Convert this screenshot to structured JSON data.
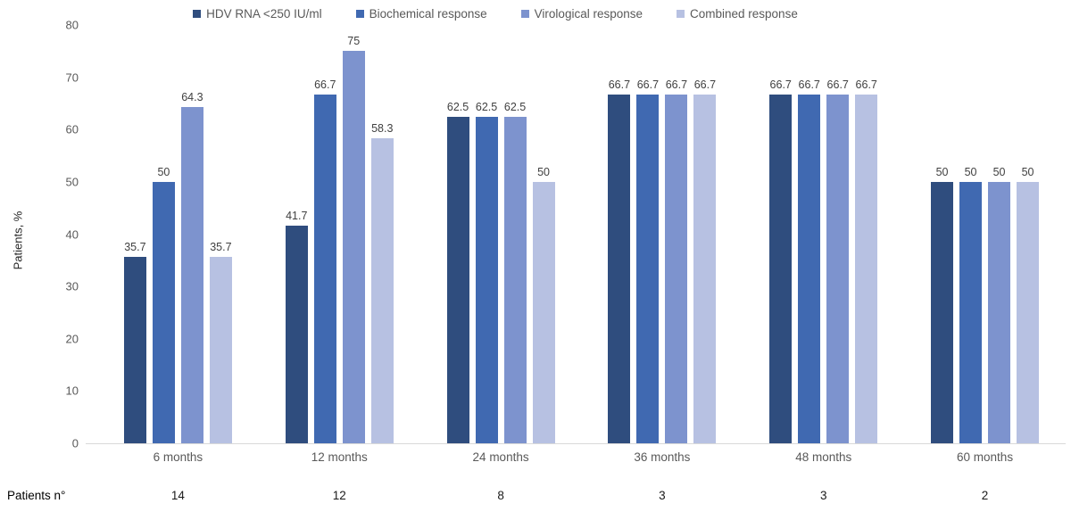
{
  "colors": {
    "series": [
      "#2F4D7E",
      "#4069B1",
      "#7D93CE",
      "#B7C1E2"
    ],
    "axis_line": "#D9D9D9",
    "tick_text": "#595959",
    "data_label_text": "#404040",
    "legend_text": "#595959",
    "patients_text": "#000000"
  },
  "chart_data": {
    "type": "bar",
    "title": "",
    "ylabel": "Patients, %",
    "xlabel": "",
    "ylim": [
      0,
      80
    ],
    "yticks": [
      0,
      10,
      20,
      30,
      40,
      50,
      60,
      70,
      80
    ],
    "grid": false,
    "legend_position": "top",
    "categories": [
      "6 months",
      "12 months",
      "24 months",
      "36 months",
      "48 months",
      "60 months"
    ],
    "series": [
      {
        "name": "HDV RNA <250 IU/ml",
        "values": [
          35.7,
          41.7,
          62.5,
          66.7,
          66.7,
          50
        ]
      },
      {
        "name": "Biochemical response",
        "values": [
          50,
          66.7,
          62.5,
          66.7,
          66.7,
          50
        ]
      },
      {
        "name": "Virological response",
        "values": [
          64.3,
          75,
          62.5,
          66.7,
          66.7,
          50
        ]
      },
      {
        "name": "Combined response",
        "values": [
          35.7,
          58.3,
          50,
          66.7,
          66.7,
          50
        ]
      }
    ],
    "patients_row": {
      "label": "Patients n°",
      "values": [
        "14",
        "12",
        "8",
        "3",
        "3",
        "2"
      ]
    }
  }
}
